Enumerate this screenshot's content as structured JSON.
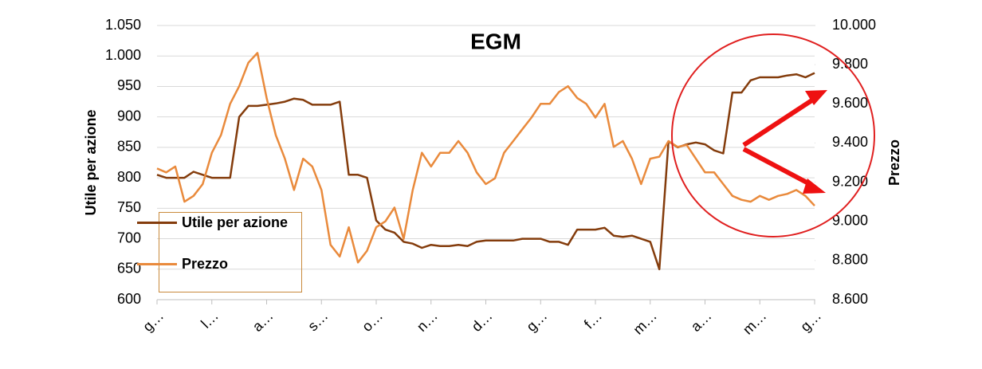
{
  "chart_data": {
    "type": "line",
    "title": "EGM",
    "ylabel": "Utile per azione",
    "y2label": "Prezzo",
    "categories": [
      "g…",
      null,
      null,
      null,
      null,
      null,
      "l…",
      null,
      null,
      null,
      null,
      null,
      "a…",
      null,
      null,
      null,
      null,
      null,
      "s…",
      null,
      null,
      null,
      null,
      null,
      "o…",
      null,
      null,
      null,
      null,
      null,
      "n…",
      null,
      null,
      null,
      null,
      null,
      "d…",
      null,
      null,
      null,
      null,
      null,
      "g…",
      null,
      null,
      null,
      null,
      null,
      "f…",
      null,
      null,
      null,
      null,
      null,
      "m…",
      null,
      null,
      null,
      null,
      null,
      "a…",
      null,
      null,
      null,
      null,
      null,
      "m…",
      null,
      null,
      null,
      null,
      null,
      "g…"
    ],
    "series": [
      {
        "name": "Utile per azione",
        "color": "#843c0c",
        "values": [
          805,
          800,
          800,
          800,
          810,
          805,
          800,
          800,
          800,
          900,
          918,
          918,
          920,
          922,
          925,
          930,
          928,
          920,
          920,
          920,
          925,
          805,
          805,
          800,
          730,
          715,
          710,
          695,
          692,
          685,
          690,
          688,
          688,
          690,
          688,
          695,
          697,
          697,
          697,
          697,
          700,
          700,
          700,
          695,
          695,
          690,
          715,
          715,
          715,
          718,
          705,
          703,
          705,
          700,
          695,
          650,
          860,
          850,
          855,
          858,
          855,
          845,
          840,
          940,
          940,
          960,
          965,
          965,
          965,
          968,
          970,
          965,
          972
        ]
      },
      {
        "name": "Prezzo",
        "color": "#e98a3c",
        "axis": "y2",
        "values": [
          9270,
          9250,
          9280,
          9100,
          9130,
          9190,
          9350,
          9440,
          9600,
          9690,
          9810,
          9860,
          9630,
          9440,
          9320,
          9160,
          9320,
          9280,
          9160,
          8880,
          8820,
          8970,
          8790,
          8850,
          8970,
          9000,
          9070,
          8910,
          9160,
          9350,
          9280,
          9350,
          9350,
          9410,
          9350,
          9250,
          9190,
          9220,
          9350,
          9410,
          9470,
          9530,
          9600,
          9600,
          9660,
          9690,
          9630,
          9600,
          9530,
          9600,
          9380,
          9410,
          9320,
          9190,
          9320,
          9330,
          9410,
          9380,
          9390,
          9320,
          9250,
          9250,
          9190,
          9130,
          9110,
          9100,
          9130,
          9110,
          9130,
          9140,
          9160,
          9130,
          9080
        ]
      }
    ],
    "ylim": [
      600,
      1050
    ],
    "yticks": [
      600,
      650,
      700,
      750,
      800,
      850,
      900,
      950,
      {
        "value": 1000,
        "label": "1.000"
      },
      {
        "value": 1050,
        "label": "1.050"
      }
    ],
    "y2lim": [
      8600,
      10000
    ],
    "y2ticks": [
      {
        "value": 8600,
        "label": "8.600"
      },
      {
        "value": 8800,
        "label": "8.800"
      },
      {
        "value": 9000,
        "label": "9.000"
      },
      {
        "value": 9200,
        "label": "9.200"
      },
      {
        "value": 9400,
        "label": "9.400"
      },
      {
        "value": 9600,
        "label": "9.600"
      },
      {
        "value": 9800,
        "label": "9.800"
      },
      {
        "value": 10000,
        "label": "10.000"
      }
    ],
    "grid": true
  }
}
